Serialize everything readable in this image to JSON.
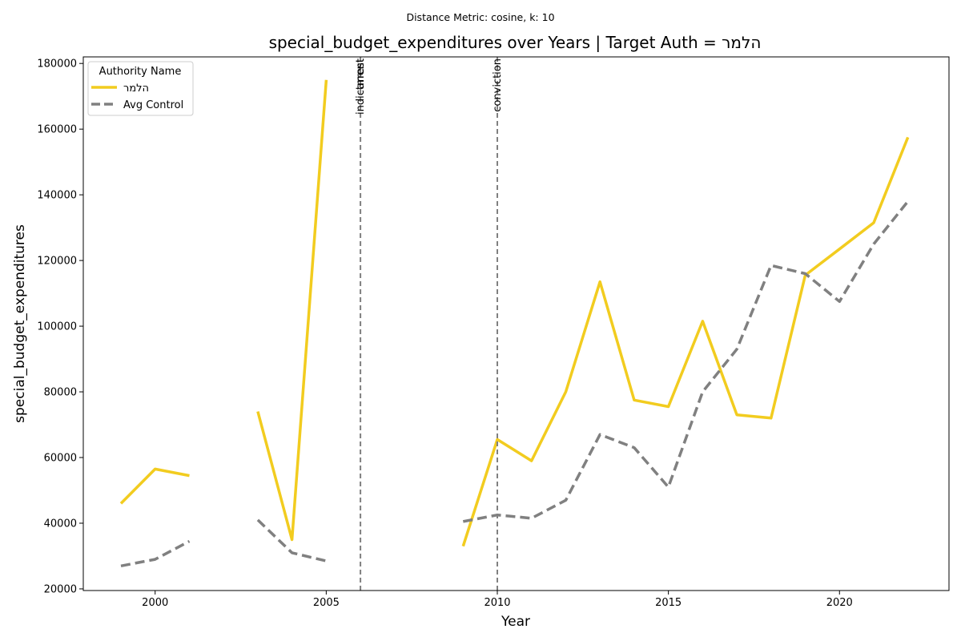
{
  "chart_data": {
    "type": "line",
    "suptitle": "Distance Metric: cosine, k: 10",
    "title": "special_budget_expenditures over Years | Target Auth = הלמר",
    "xlabel": "Year",
    "ylabel": "special_budget_expenditures",
    "xlim": [
      1997.9,
      2023.2
    ],
    "ylim": [
      19500,
      182000
    ],
    "xticks": [
      2000,
      2005,
      2010,
      2015,
      2020
    ],
    "yticks": [
      20000,
      40000,
      60000,
      80000,
      100000,
      120000,
      140000,
      160000,
      180000
    ],
    "grid": false,
    "legend": {
      "title": "Authority Name",
      "placement": "top-left"
    },
    "series": [
      {
        "name": "הלמר",
        "color": "#f2cc1f",
        "style": "solid",
        "x": [
          1999,
          2000,
          2001,
          2002,
          2003,
          2004,
          2005,
          2006,
          2007,
          2008,
          2009,
          2010,
          2011,
          2012,
          2013,
          2014,
          2015,
          2016,
          2017,
          2018,
          2019,
          2020,
          2021,
          2022
        ],
        "values": [
          46000,
          56500,
          54500,
          null,
          74000,
          35000,
          175000,
          null,
          null,
          null,
          33000,
          65500,
          59000,
          80000,
          113500,
          77500,
          75500,
          101500,
          73000,
          72000,
          115500,
          123500,
          131500,
          157500
        ]
      },
      {
        "name": "Avg Control",
        "color": "#808080",
        "style": "dashed",
        "x": [
          1999,
          2000,
          2001,
          2002,
          2003,
          2004,
          2005,
          2006,
          2007,
          2008,
          2009,
          2010,
          2011,
          2012,
          2013,
          2014,
          2015,
          2016,
          2017,
          2018,
          2019,
          2020,
          2021,
          2022
        ],
        "values": [
          27000,
          29000,
          34500,
          null,
          41000,
          31000,
          28500,
          null,
          null,
          null,
          40500,
          42500,
          41500,
          47000,
          67000,
          63000,
          51000,
          80000,
          93000,
          118500,
          116000,
          107500,
          125000,
          138000
        ]
      }
    ],
    "events": [
      {
        "x": 2006,
        "label": "indictment"
      },
      {
        "x": 2006,
        "label": "arrest"
      },
      {
        "x": 2010,
        "label": "conviction"
      }
    ]
  }
}
